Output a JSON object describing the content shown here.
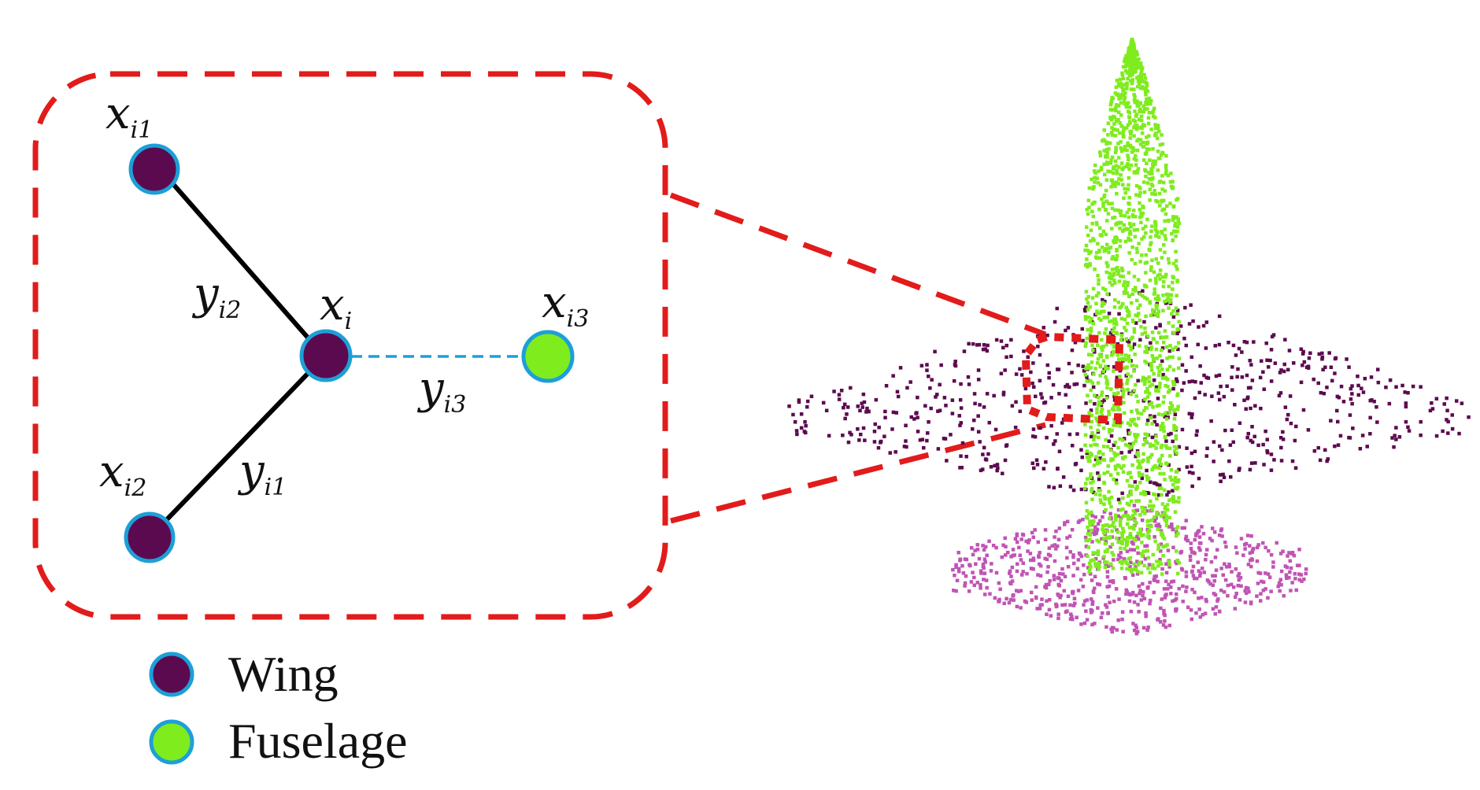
{
  "graph": {
    "nodes": [
      {
        "id": "xi",
        "base": "x",
        "sub": "i",
        "part": "wing"
      },
      {
        "id": "xi1",
        "base": "x",
        "sub": "i1",
        "part": "wing"
      },
      {
        "id": "xi2",
        "base": "x",
        "sub": "i2",
        "part": "wing"
      },
      {
        "id": "xi3",
        "base": "x",
        "sub": "i3",
        "part": "fuselage"
      }
    ],
    "edges": [
      {
        "id": "yi2",
        "base": "y",
        "sub": "i2",
        "style": "solid"
      },
      {
        "id": "yi1",
        "base": "y",
        "sub": "i1",
        "style": "solid"
      },
      {
        "id": "yi3",
        "base": "y",
        "sub": "i3",
        "style": "dashed"
      }
    ]
  },
  "legend": [
    {
      "label": "Wing",
      "part": "wing"
    },
    {
      "label": "Fuselage",
      "part": "fuselage"
    }
  ],
  "colors": {
    "wing": "#5c0a4f",
    "fuselage": "#7fec1e",
    "tail": "#c054b4",
    "node_border": "#1d9fd8",
    "zoom_box": "#e21b1b",
    "solid_edge": "#000000",
    "dashed_edge": "#1d9fd8"
  },
  "point_cloud": {
    "parts": [
      "wing",
      "fuselage",
      "tail"
    ]
  }
}
